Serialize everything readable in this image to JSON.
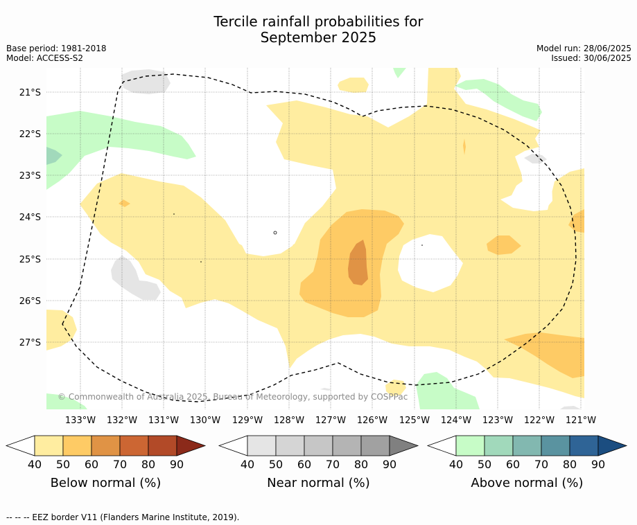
{
  "title_line1": "Tercile rainfall probabilities for",
  "title_line2": "September 2025",
  "base_period": "Base period: 1981-2018",
  "model": "Model: ACCESS-S2",
  "model_run": "Model run: 28/06/2025",
  "issued": "Issued: 30/06/2025",
  "map": {
    "lat_labels": [
      "21°S",
      "22°S",
      "23°S",
      "24°S",
      "25°S",
      "26°S",
      "27°S"
    ],
    "lon_labels": [
      "133°W",
      "132°W",
      "131°W",
      "130°W",
      "129°W",
      "128°W",
      "127°W",
      "126°W",
      "125°W",
      "124°W",
      "123°W",
      "122°W",
      "121°W"
    ],
    "copyright": "© Commonwealth of Australia 2025, Bureau of Meteorology, supported by COSPPac",
    "colors": {
      "below": [
        "#ffeda0",
        "#fecb65",
        "#e09345",
        "#cc6633",
        "#b24a28",
        "#8b2a1a"
      ],
      "near": [
        "#e5e5e5",
        "#d5d5d5",
        "#c6c6c6",
        "#b4b4b4",
        "#a1a1a1",
        "#808080"
      ],
      "above": [
        "#c7fcc7",
        "#a1d9bb",
        "#82b8b0",
        "#5a93a0",
        "#2f6496",
        "#1b4d80"
      ]
    }
  },
  "colorbars": [
    {
      "title": "Below normal (%)",
      "ticks": [
        "40",
        "50",
        "60",
        "70",
        "80",
        "90"
      ]
    },
    {
      "title": "Near normal (%)",
      "ticks": [
        "40",
        "50",
        "60",
        "70",
        "80",
        "90"
      ]
    },
    {
      "title": "Above normal (%)",
      "ticks": [
        "40",
        "50",
        "60",
        "70",
        "80",
        "90"
      ]
    }
  ],
  "footnote": "--  --  -- EEZ border V11 (Flanders Marine Institute, 2019)."
}
